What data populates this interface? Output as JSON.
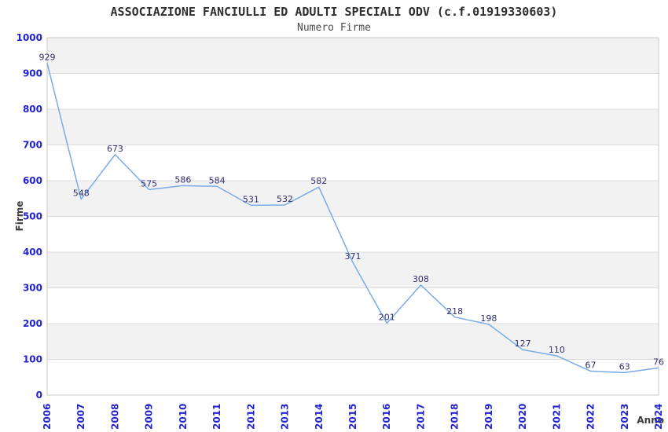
{
  "header": {
    "title": "ASSOCIAZIONE FANCIULLI ED ADULTI SPECIALI ODV (c.f.01919330603)",
    "subtitle": "Numero Firme"
  },
  "chart_data": {
    "type": "line",
    "title": "ASSOCIAZIONE FANCIULLI ED ADULTI SPECIALI ODV (c.f.01919330603)",
    "subtitle": "Numero Firme",
    "xlabel": "Anno",
    "ylabel": "Firme",
    "x": [
      "2006",
      "2007",
      "2008",
      "2009",
      "2010",
      "2011",
      "2012",
      "2013",
      "2014",
      "2015",
      "2016",
      "2017",
      "2018",
      "2019",
      "2020",
      "2021",
      "2022",
      "2023",
      "2024"
    ],
    "series": [
      {
        "name": "Numero Firme",
        "values": [
          929,
          548,
          673,
          575,
          586,
          584,
          531,
          532,
          582,
          371,
          201,
          308,
          218,
          198,
          127,
          110,
          67,
          63,
          76
        ]
      }
    ],
    "ylim": [
      0,
      1000
    ],
    "ytick_step": 100,
    "grid": true,
    "band_pattern": "alternating gray/white from top",
    "data_labels": true,
    "legend_position": "none",
    "colors": {
      "line": "#78abe8",
      "band": "#f2f2f2",
      "grid": "#dcdcdc",
      "border": "#c8c8c8",
      "tick": "#2323cc",
      "dlabel": "#2f2f73",
      "axis": "#3d3d3d",
      "title": "#2e2e2e"
    }
  }
}
